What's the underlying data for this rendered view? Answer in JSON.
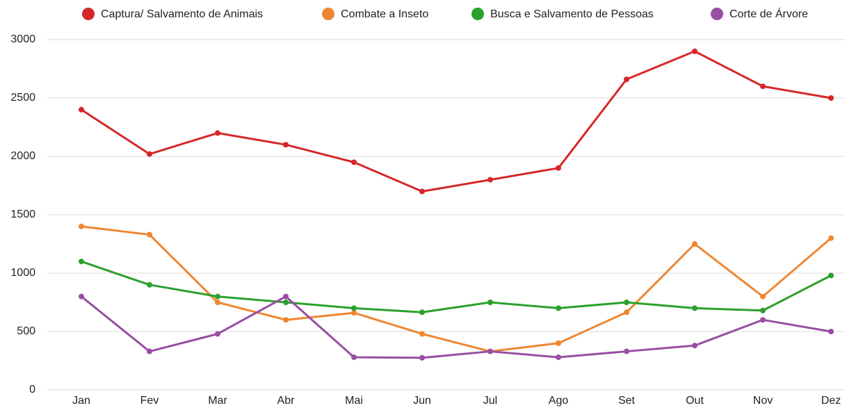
{
  "chart_data": {
    "type": "line",
    "categories": [
      "Jan",
      "Fev",
      "Mar",
      "Abr",
      "Mai",
      "Jun",
      "Jul",
      "Ago",
      "Set",
      "Out",
      "Nov",
      "Dez"
    ],
    "series": [
      {
        "name": "Captura/ Salvamento de Animais",
        "color": "#d62728",
        "values": [
          2400,
          2020,
          2200,
          2100,
          1950,
          1700,
          1800,
          1900,
          2660,
          2900,
          2600,
          2500
        ]
      },
      {
        "name": "Combate a Inseto",
        "color": "#ee8631",
        "values": [
          1400,
          1330,
          750,
          600,
          660,
          480,
          330,
          400,
          665,
          1250,
          800,
          1300
        ]
      },
      {
        "name": "Busca e Salvamento de Pessoas",
        "color": "#2ca02c",
        "values": [
          1100,
          900,
          800,
          750,
          700,
          665,
          750,
          700,
          750,
          700,
          680,
          980
        ]
      },
      {
        "name": "Corte de Árvore",
        "color": "#984ea3",
        "values": [
          800,
          330,
          480,
          800,
          280,
          275,
          330,
          280,
          330,
          380,
          600,
          500
        ]
      }
    ],
    "ylim": [
      0,
      3000
    ],
    "yticks": [
      0,
      500,
      1000,
      1500,
      2000,
      2500,
      3000
    ],
    "grid": true,
    "legend": "top"
  }
}
